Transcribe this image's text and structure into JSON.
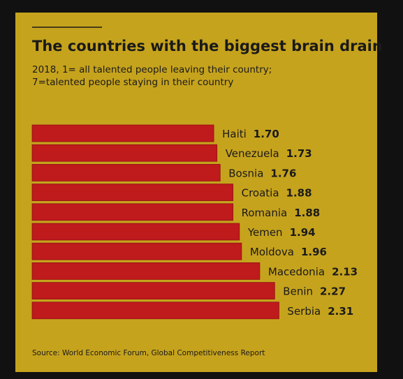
{
  "chart_data": {
    "type": "bar",
    "orientation": "horizontal",
    "title": "The countries with the biggest brain drain",
    "subtitle": [
      "2018, 1= all talented people leaving their country;",
      "7=talented people staying in their country"
    ],
    "categories": [
      "Haiti",
      "Venezuela",
      "Bosnia",
      "Croatia",
      "Romania",
      "Yemen",
      "Moldova",
      "Macedonia",
      "Benin",
      "Serbia"
    ],
    "values": [
      1.7,
      1.73,
      1.76,
      1.88,
      1.88,
      1.94,
      1.96,
      2.13,
      2.27,
      2.31
    ],
    "value_labels": [
      "1.70",
      "1.73",
      "1.76",
      "1.88",
      "1.88",
      "1.94",
      "1.96",
      "2.13",
      "2.27",
      "2.31"
    ],
    "color": "#bf1a1c",
    "source": "Source: World Economic Forum, Global Competitiveness Report"
  }
}
